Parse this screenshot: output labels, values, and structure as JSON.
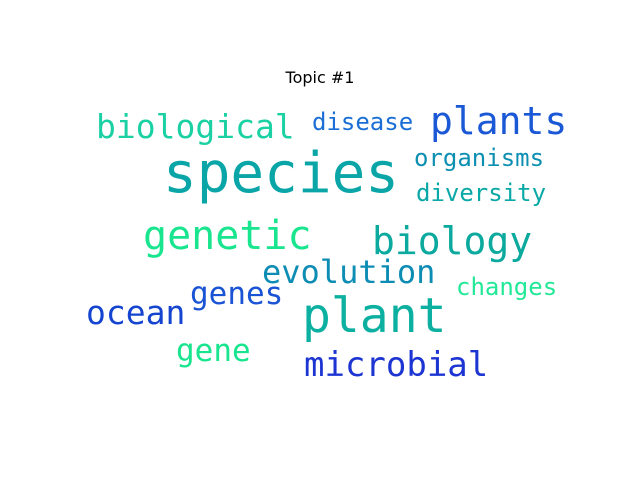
{
  "title": "Topic #1",
  "words": [
    {
      "id": "species",
      "text": "species",
      "color": "#0aa5a7"
    },
    {
      "id": "plant",
      "text": "plant",
      "color": "#0bb0a0"
    },
    {
      "id": "genetic",
      "text": "genetic",
      "color": "#19e58f"
    },
    {
      "id": "biology",
      "text": "biology",
      "color": "#0ba99e"
    },
    {
      "id": "biological",
      "text": "biological",
      "color": "#1bd1a4"
    },
    {
      "id": "plants",
      "text": "plants",
      "color": "#1a58d6"
    },
    {
      "id": "microbial",
      "text": "microbial",
      "color": "#1c35d2"
    },
    {
      "id": "evolution",
      "text": "evolution",
      "color": "#0d8cb4"
    },
    {
      "id": "ocean",
      "text": "ocean",
      "color": "#1444d0"
    },
    {
      "id": "genes",
      "text": "genes",
      "color": "#1a54d4"
    },
    {
      "id": "gene",
      "text": "gene",
      "color": "#19e58f"
    },
    {
      "id": "disease",
      "text": "disease",
      "color": "#1a6ed6"
    },
    {
      "id": "organisms",
      "text": "organisms",
      "color": "#0d8fb2"
    },
    {
      "id": "diversity",
      "text": "diversity",
      "color": "#0aa8a6"
    },
    {
      "id": "changes",
      "text": "changes",
      "color": "#22e897"
    }
  ]
}
